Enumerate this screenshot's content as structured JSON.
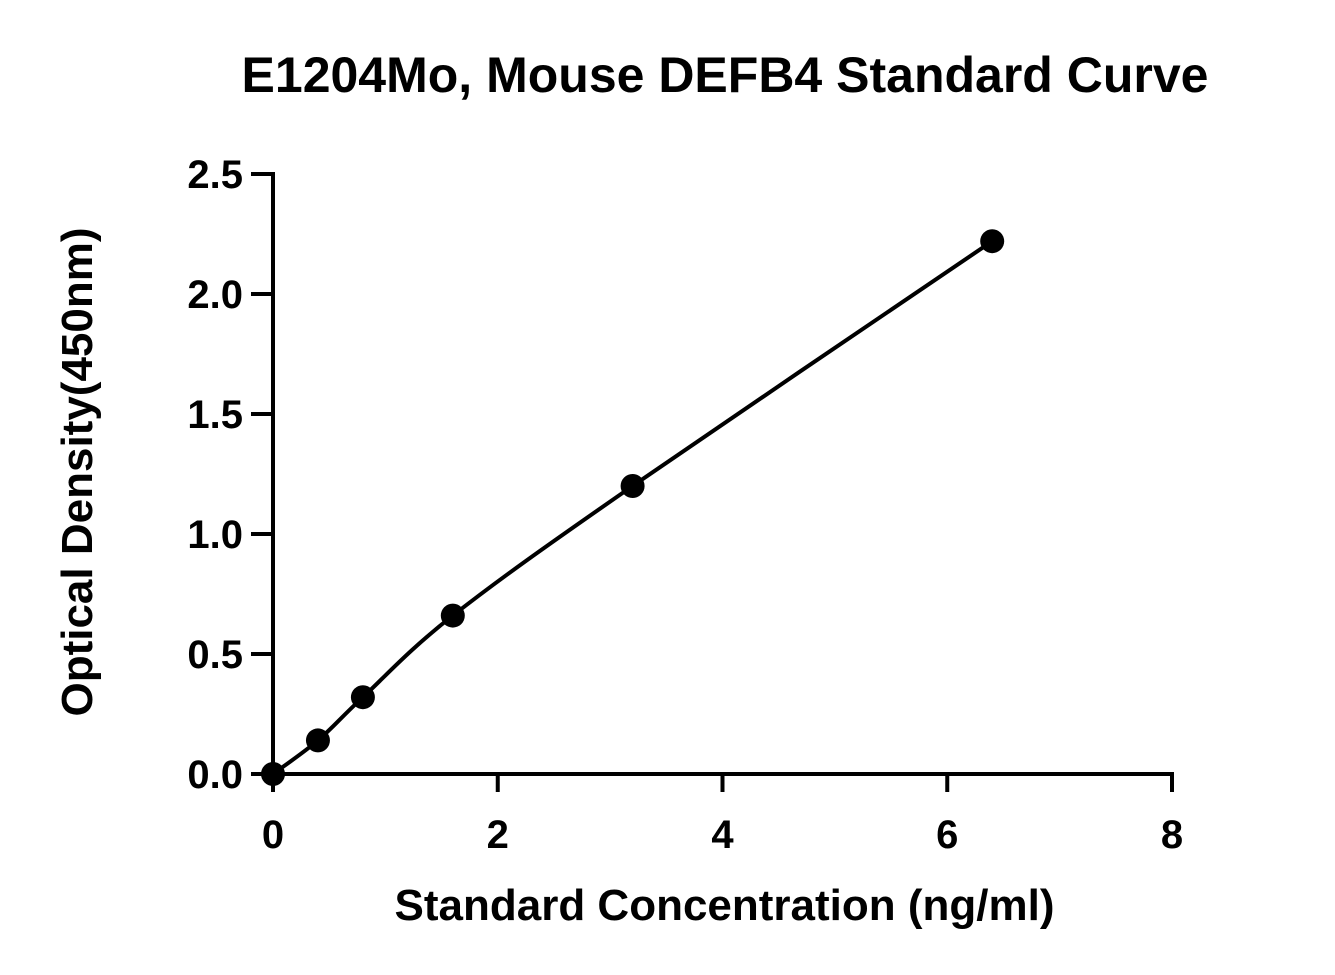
{
  "chart_data": {
    "type": "scatter",
    "title": "E1204Mo, Mouse DEFB4 Standard Curve",
    "xlabel": "Standard Concentration (ng/ml)",
    "ylabel": "Optical Density(450nm)",
    "xlim": [
      0,
      8
    ],
    "ylim": [
      0,
      2.5
    ],
    "x_ticks": [
      "0",
      "2",
      "4",
      "6",
      "8"
    ],
    "y_ticks": [
      "0.0",
      "0.5",
      "1.0",
      "1.5",
      "2.0",
      "2.5"
    ],
    "grid": false,
    "fit_line": true,
    "series": [
      {
        "x": [
          0,
          0.4,
          0.8,
          1.6,
          3.2,
          6.4
        ],
        "y": [
          0.0,
          0.14,
          0.32,
          0.66,
          1.2,
          2.22
        ]
      }
    ]
  }
}
